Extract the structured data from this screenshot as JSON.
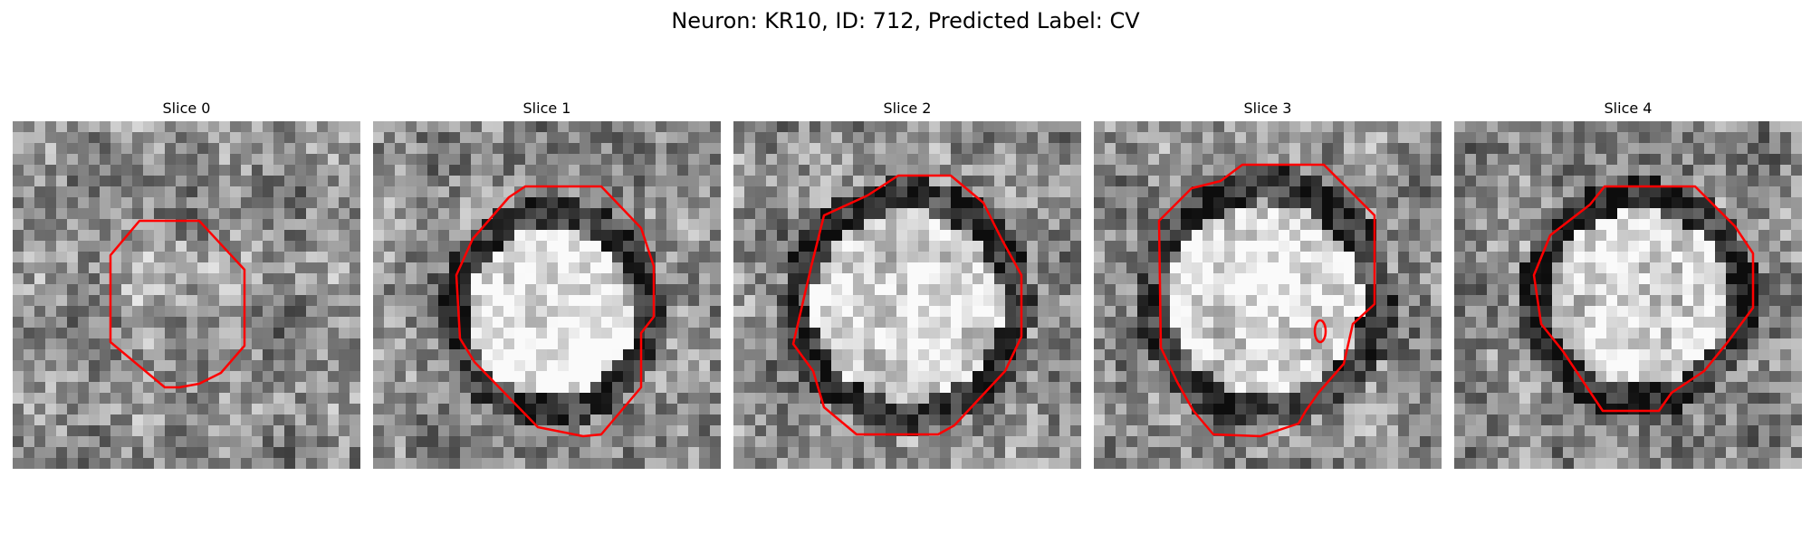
{
  "figure": {
    "title": "Neuron: KR10, ID: 712, Predicted Label: CV",
    "contour_color": "#ff0000",
    "colormap": "grayscale"
  },
  "panels": [
    {
      "title": "Slice 0",
      "cell_brightness": "mottled"
    },
    {
      "title": "Slice 1",
      "cell_brightness": "bright-center"
    },
    {
      "title": "Slice 2",
      "cell_brightness": "bright-center"
    },
    {
      "title": "Slice 3",
      "cell_brightness": "bright-center"
    },
    {
      "title": "Slice 4",
      "cell_brightness": "bright-center"
    }
  ]
}
